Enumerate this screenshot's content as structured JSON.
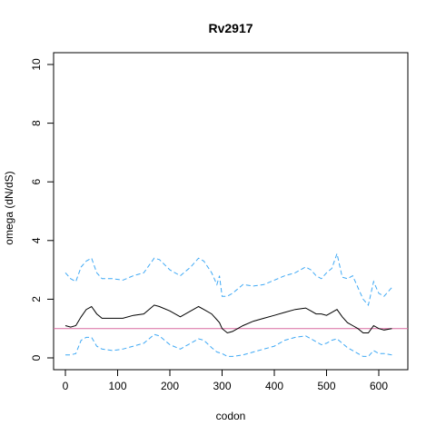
{
  "chart_data": {
    "type": "line",
    "title": "Rv2917",
    "xlabel": "codon",
    "ylabel": "omega (dN/dS)",
    "xlim": [
      0,
      640
    ],
    "ylim": [
      0,
      10
    ],
    "x_ticks": [
      0,
      100,
      200,
      300,
      400,
      500,
      600
    ],
    "y_ticks": [
      0,
      2,
      4,
      6,
      8,
      10
    ],
    "reference_line": {
      "y": 1,
      "color": "#d96aa0"
    },
    "colors": {
      "mean": "#000000",
      "bounds": "#3fa9f5"
    },
    "series": [
      {
        "role": "mean",
        "points": [
          [
            0,
            1.1
          ],
          [
            10,
            1.05
          ],
          [
            20,
            1.1
          ],
          [
            30,
            1.4
          ],
          [
            40,
            1.65
          ],
          [
            50,
            1.75
          ],
          [
            60,
            1.5
          ],
          [
            70,
            1.35
          ],
          [
            90,
            1.35
          ],
          [
            110,
            1.35
          ],
          [
            130,
            1.45
          ],
          [
            150,
            1.5
          ],
          [
            170,
            1.8
          ],
          [
            180,
            1.75
          ],
          [
            200,
            1.6
          ],
          [
            220,
            1.4
          ],
          [
            240,
            1.6
          ],
          [
            255,
            1.75
          ],
          [
            265,
            1.65
          ],
          [
            280,
            1.5
          ],
          [
            290,
            1.3
          ],
          [
            295,
            1.2
          ],
          [
            300,
            1.0
          ],
          [
            310,
            0.85
          ],
          [
            320,
            0.9
          ],
          [
            340,
            1.1
          ],
          [
            360,
            1.25
          ],
          [
            380,
            1.35
          ],
          [
            400,
            1.45
          ],
          [
            420,
            1.55
          ],
          [
            440,
            1.65
          ],
          [
            460,
            1.7
          ],
          [
            470,
            1.6
          ],
          [
            480,
            1.5
          ],
          [
            490,
            1.5
          ],
          [
            500,
            1.45
          ],
          [
            510,
            1.55
          ],
          [
            520,
            1.65
          ],
          [
            530,
            1.4
          ],
          [
            540,
            1.2
          ],
          [
            550,
            1.1
          ],
          [
            560,
            1.0
          ],
          [
            570,
            0.85
          ],
          [
            580,
            0.85
          ],
          [
            590,
            1.1
          ],
          [
            600,
            1.0
          ],
          [
            610,
            0.95
          ],
          [
            625,
            1.0
          ]
        ]
      },
      {
        "role": "upper",
        "points": [
          [
            0,
            2.9
          ],
          [
            10,
            2.7
          ],
          [
            20,
            2.6
          ],
          [
            30,
            3.1
          ],
          [
            40,
            3.3
          ],
          [
            50,
            3.4
          ],
          [
            60,
            2.9
          ],
          [
            70,
            2.7
          ],
          [
            90,
            2.7
          ],
          [
            110,
            2.65
          ],
          [
            130,
            2.8
          ],
          [
            150,
            2.9
          ],
          [
            170,
            3.4
          ],
          [
            180,
            3.35
          ],
          [
            200,
            3.0
          ],
          [
            220,
            2.8
          ],
          [
            240,
            3.1
          ],
          [
            255,
            3.4
          ],
          [
            265,
            3.3
          ],
          [
            280,
            2.9
          ],
          [
            290,
            2.5
          ],
          [
            295,
            2.8
          ],
          [
            300,
            2.1
          ],
          [
            310,
            2.1
          ],
          [
            320,
            2.2
          ],
          [
            340,
            2.5
          ],
          [
            360,
            2.45
          ],
          [
            380,
            2.5
          ],
          [
            400,
            2.65
          ],
          [
            420,
            2.8
          ],
          [
            440,
            2.9
          ],
          [
            460,
            3.1
          ],
          [
            470,
            3.0
          ],
          [
            480,
            2.8
          ],
          [
            490,
            2.7
          ],
          [
            500,
            2.9
          ],
          [
            510,
            3.05
          ],
          [
            520,
            3.55
          ],
          [
            530,
            2.75
          ],
          [
            540,
            2.7
          ],
          [
            550,
            2.8
          ],
          [
            560,
            2.4
          ],
          [
            570,
            2.0
          ],
          [
            580,
            1.8
          ],
          [
            590,
            2.6
          ],
          [
            600,
            2.2
          ],
          [
            610,
            2.1
          ],
          [
            620,
            2.3
          ],
          [
            625,
            2.4
          ]
        ]
      },
      {
        "role": "lower",
        "points": [
          [
            0,
            0.1
          ],
          [
            10,
            0.1
          ],
          [
            20,
            0.15
          ],
          [
            30,
            0.6
          ],
          [
            40,
            0.7
          ],
          [
            50,
            0.7
          ],
          [
            60,
            0.4
          ],
          [
            70,
            0.3
          ],
          [
            90,
            0.25
          ],
          [
            110,
            0.3
          ],
          [
            130,
            0.4
          ],
          [
            150,
            0.5
          ],
          [
            170,
            0.8
          ],
          [
            180,
            0.75
          ],
          [
            200,
            0.45
          ],
          [
            220,
            0.3
          ],
          [
            240,
            0.5
          ],
          [
            255,
            0.65
          ],
          [
            265,
            0.6
          ],
          [
            280,
            0.35
          ],
          [
            290,
            0.2
          ],
          [
            300,
            0.15
          ],
          [
            310,
            0.05
          ],
          [
            320,
            0.05
          ],
          [
            340,
            0.1
          ],
          [
            360,
            0.2
          ],
          [
            380,
            0.3
          ],
          [
            400,
            0.4
          ],
          [
            420,
            0.6
          ],
          [
            440,
            0.7
          ],
          [
            460,
            0.75
          ],
          [
            470,
            0.65
          ],
          [
            480,
            0.55
          ],
          [
            490,
            0.45
          ],
          [
            500,
            0.5
          ],
          [
            510,
            0.6
          ],
          [
            520,
            0.65
          ],
          [
            530,
            0.5
          ],
          [
            540,
            0.35
          ],
          [
            550,
            0.25
          ],
          [
            560,
            0.15
          ],
          [
            570,
            0.05
          ],
          [
            580,
            0.05
          ],
          [
            590,
            0.25
          ],
          [
            600,
            0.15
          ],
          [
            610,
            0.15
          ],
          [
            625,
            0.1
          ]
        ]
      }
    ]
  }
}
